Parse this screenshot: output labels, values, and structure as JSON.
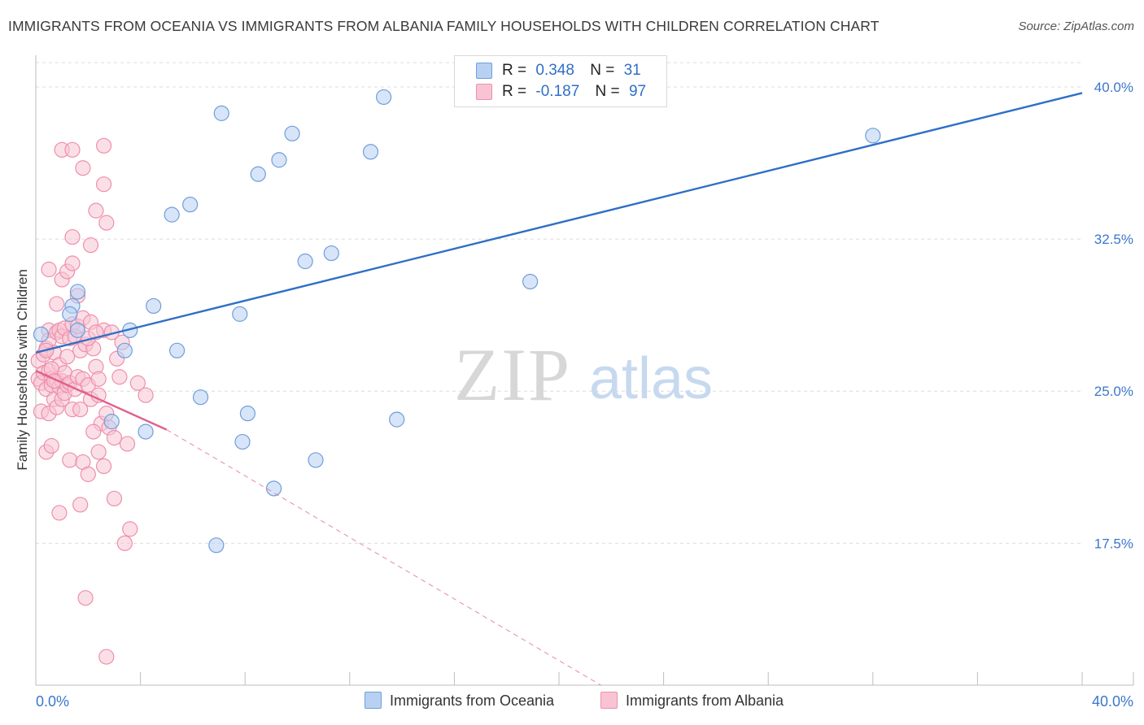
{
  "header": {
    "title": "IMMIGRANTS FROM OCEANIA VS IMMIGRANTS FROM ALBANIA FAMILY HOUSEHOLDS WITH CHILDREN CORRELATION CHART",
    "source": "Source: ZipAtlas.com"
  },
  "watermark": {
    "zip": "ZIP",
    "atlas": "atlas"
  },
  "stats": {
    "oceania": {
      "r_label": "R =",
      "r_value": "0.348",
      "n_label": "N =",
      "n_value": "31"
    },
    "albania": {
      "r_label": "R =",
      "r_value": "-0.187",
      "n_label": "N =",
      "n_value": "97"
    }
  },
  "legend": {
    "oceania": "Immigrants from Oceania",
    "albania": "Immigrants from Albania"
  },
  "colors": {
    "oceania_fill": "#b8d0f2",
    "oceania_stroke": "#6f9edb",
    "oceania_line": "#2f6fc6",
    "albania_fill": "#f8c4d3",
    "albania_stroke": "#ee8fac",
    "albania_line": "#e0608c",
    "tick_text": "#3b77c9",
    "grid": "#dcdcdc"
  },
  "chart_data": {
    "type": "scatter",
    "title": "IMMIGRANTS FROM OCEANIA VS IMMIGRANTS FROM ALBANIA FAMILY HOUSEHOLDS WITH CHILDREN CORRELATION CHART",
    "xlabel": "",
    "ylabel": "Family Households with Children",
    "xlim": [
      0,
      40
    ],
    "ylim": [
      10.5,
      41.2
    ],
    "x_tick_labels": [
      "0.0%",
      "40.0%"
    ],
    "y_ticks": [
      17.5,
      25.0,
      32.5,
      40.0
    ],
    "y_tick_labels": [
      "17.5%",
      "25.0%",
      "32.5%",
      "40.0%"
    ],
    "grid": true,
    "series": [
      {
        "name": "Immigrants from Oceania",
        "points": [
          [
            0.2,
            27.8
          ],
          [
            1.4,
            29.2
          ],
          [
            1.6,
            29.9
          ],
          [
            1.3,
            28.8
          ],
          [
            1.6,
            28.0
          ],
          [
            3.6,
            28.0
          ],
          [
            4.5,
            29.2
          ],
          [
            3.4,
            27.0
          ],
          [
            5.4,
            27.0
          ],
          [
            2.9,
            23.5
          ],
          [
            4.2,
            23.0
          ],
          [
            6.3,
            24.7
          ],
          [
            8.1,
            23.9
          ],
          [
            7.9,
            22.5
          ],
          [
            6.9,
            17.4
          ],
          [
            9.1,
            20.2
          ],
          [
            10.7,
            21.6
          ],
          [
            13.8,
            23.6
          ],
          [
            7.8,
            28.8
          ],
          [
            10.3,
            31.4
          ],
          [
            11.3,
            31.8
          ],
          [
            18.9,
            30.4
          ],
          [
            5.2,
            33.7
          ],
          [
            5.9,
            34.2
          ],
          [
            8.5,
            35.7
          ],
          [
            9.3,
            36.4
          ],
          [
            9.8,
            37.7
          ],
          [
            7.1,
            38.7
          ],
          [
            12.8,
            36.8
          ],
          [
            13.3,
            39.5
          ],
          [
            32.0,
            37.6
          ]
        ]
      },
      {
        "name": "Immigrants from Albania",
        "points": [
          [
            0.1,
            26.5
          ],
          [
            0.1,
            25.6
          ],
          [
            0.2,
            25.4
          ],
          [
            0.2,
            24.0
          ],
          [
            0.3,
            26.8
          ],
          [
            0.3,
            25.9
          ],
          [
            0.4,
            27.1
          ],
          [
            0.4,
            25.1
          ],
          [
            0.5,
            28.0
          ],
          [
            0.5,
            27.5
          ],
          [
            0.5,
            26.0
          ],
          [
            0.5,
            23.9
          ],
          [
            0.6,
            25.6
          ],
          [
            0.6,
            25.3
          ],
          [
            0.7,
            26.9
          ],
          [
            0.7,
            24.6
          ],
          [
            0.8,
            27.9
          ],
          [
            0.8,
            25.5
          ],
          [
            0.8,
            24.2
          ],
          [
            0.9,
            28.0
          ],
          [
            0.9,
            26.3
          ],
          [
            0.9,
            25.2
          ],
          [
            1.0,
            27.7
          ],
          [
            1.0,
            25.5
          ],
          [
            1.0,
            24.6
          ],
          [
            1.1,
            28.1
          ],
          [
            1.1,
            25.9
          ],
          [
            1.1,
            24.9
          ],
          [
            1.2,
            26.7
          ],
          [
            1.2,
            25.3
          ],
          [
            1.3,
            27.6
          ],
          [
            1.3,
            25.4
          ],
          [
            1.4,
            28.3
          ],
          [
            1.4,
            24.1
          ],
          [
            1.5,
            27.7
          ],
          [
            1.5,
            25.1
          ],
          [
            1.6,
            28.2
          ],
          [
            1.6,
            25.7
          ],
          [
            1.7,
            27.0
          ],
          [
            1.7,
            24.1
          ],
          [
            1.8,
            28.6
          ],
          [
            1.8,
            25.6
          ],
          [
            1.9,
            27.3
          ],
          [
            2.0,
            25.3
          ],
          [
            2.1,
            28.4
          ],
          [
            2.1,
            24.6
          ],
          [
            2.2,
            27.1
          ],
          [
            2.3,
            26.2
          ],
          [
            2.4,
            25.6
          ],
          [
            2.4,
            24.8
          ],
          [
            2.5,
            23.4
          ],
          [
            2.6,
            28.0
          ],
          [
            2.7,
            23.9
          ],
          [
            2.8,
            23.2
          ],
          [
            3.0,
            22.7
          ],
          [
            3.2,
            25.7
          ],
          [
            3.3,
            27.4
          ],
          [
            3.5,
            22.4
          ],
          [
            3.9,
            25.4
          ],
          [
            4.2,
            24.8
          ],
          [
            0.4,
            22.0
          ],
          [
            0.6,
            22.3
          ],
          [
            0.8,
            29.3
          ],
          [
            1.0,
            30.5
          ],
          [
            1.2,
            30.9
          ],
          [
            1.4,
            31.3
          ],
          [
            1.6,
            29.7
          ],
          [
            2.2,
            23.0
          ],
          [
            2.4,
            22.0
          ],
          [
            2.6,
            21.3
          ],
          [
            3.0,
            19.7
          ],
          [
            1.3,
            21.6
          ],
          [
            1.8,
            21.5
          ],
          [
            2.0,
            20.9
          ],
          [
            0.9,
            19.0
          ],
          [
            1.7,
            19.4
          ],
          [
            3.6,
            18.2
          ],
          [
            3.4,
            17.5
          ],
          [
            1.9,
            14.8
          ],
          [
            2.7,
            11.9
          ],
          [
            0.5,
            31.0
          ],
          [
            2.1,
            32.2
          ],
          [
            1.4,
            32.6
          ],
          [
            1.0,
            36.9
          ],
          [
            1.4,
            36.9
          ],
          [
            1.8,
            36.0
          ],
          [
            2.6,
            37.1
          ],
          [
            2.6,
            35.2
          ],
          [
            2.3,
            33.9
          ],
          [
            2.7,
            33.3
          ],
          [
            0.4,
            27.0
          ],
          [
            0.6,
            26.1
          ],
          [
            0.7,
            25.5
          ],
          [
            2.9,
            27.9
          ],
          [
            3.1,
            26.6
          ],
          [
            2.0,
            27.6
          ],
          [
            2.3,
            27.9
          ]
        ]
      }
    ],
    "trendlines": [
      {
        "series": "Immigrants from Oceania",
        "from": [
          0.0,
          26.9
        ],
        "to": [
          40.0,
          39.7
        ],
        "style": "solid"
      },
      {
        "series": "Immigrants from Albania",
        "from": [
          0.0,
          26.0
        ],
        "to": [
          5.0,
          23.1
        ],
        "style": "solid"
      },
      {
        "series": "Immigrants from Albania",
        "from": [
          5.0,
          23.1
        ],
        "to": [
          21.6,
          10.5
        ],
        "style": "dashed"
      }
    ]
  }
}
